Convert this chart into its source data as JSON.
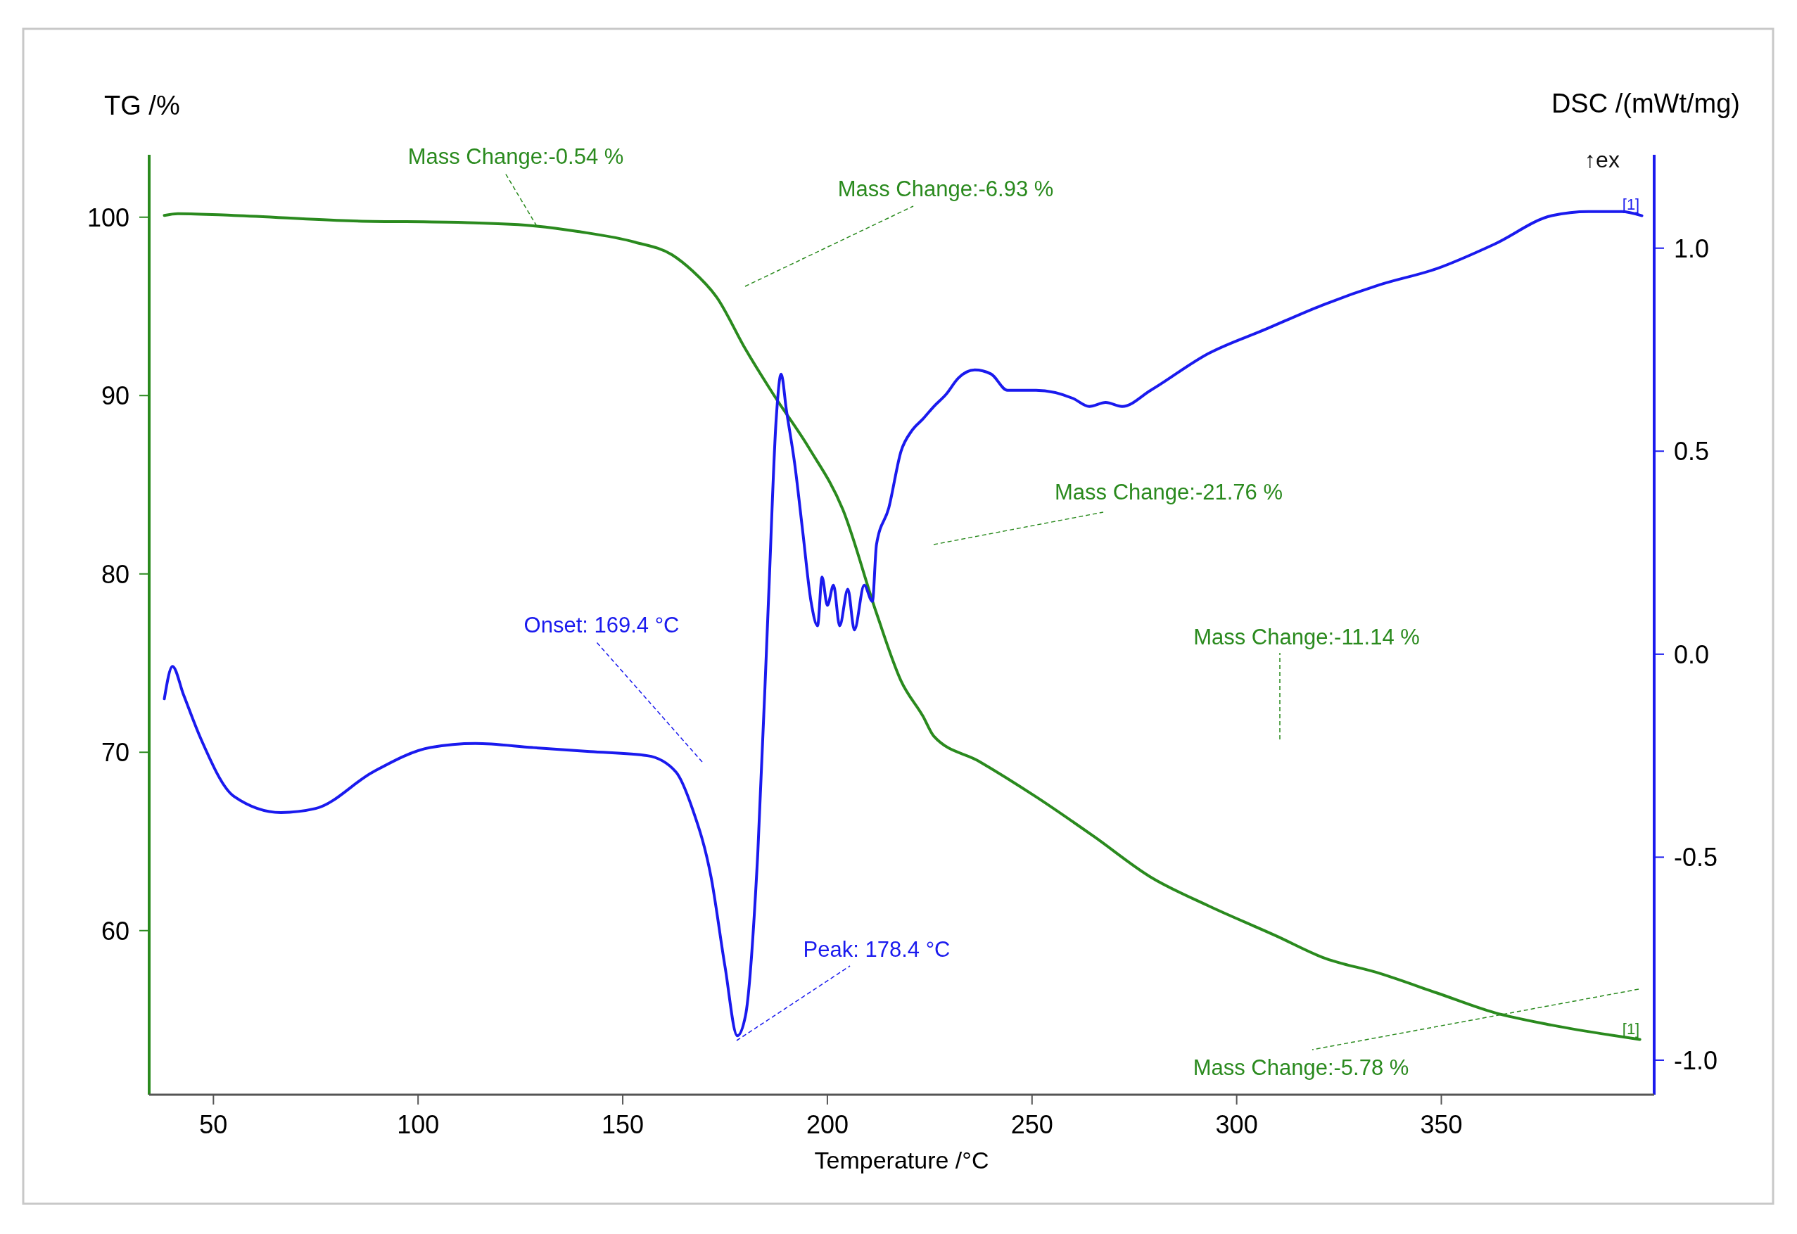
{
  "chart_data": {
    "type": "line",
    "xlabel": "Temperature /°C",
    "ylabel": "TG /%",
    "y2label": "DSC /(mWt/mg)",
    "xlim": [
      34.3,
      402
    ],
    "xticks": [
      50,
      100,
      150,
      200,
      250,
      300,
      350
    ],
    "ylim": [
      50.8,
      103.5
    ],
    "yticks": [
      60,
      70,
      80,
      90,
      100
    ],
    "y2lim": [
      -1.085,
      1.23
    ],
    "y2ticks": [
      {
        "value": -1,
        "label": "-1.0"
      },
      {
        "value": -0.5,
        "label": "-0.5"
      },
      {
        "value": 0,
        "label": "0.0"
      },
      {
        "value": 0.5,
        "label": "0.5"
      },
      {
        "value": 1,
        "label": "1.0"
      }
    ],
    "grid": false,
    "series": [
      {
        "color": "#2a8a1e",
        "x": [
          38,
          41.3,
          55,
          83,
          111,
          129,
          139,
          153,
          162,
          167,
          173,
          180,
          187,
          195.4,
          203.8,
          212,
          218,
          223.4,
          226,
          237,
          251,
          265,
          279,
          293,
          309.7,
          321,
          335,
          349,
          363,
          377,
          398.5
        ],
        "values": [
          100.1,
          100.2,
          100.1,
          99.8,
          99.7,
          99.5,
          99.2,
          98.6,
          97.9,
          97.0,
          95.5,
          92.6,
          90.0,
          87.1,
          83.6,
          77.8,
          74.0,
          72.0,
          70.9,
          69.5,
          67.5,
          65.3,
          63.0,
          61.4,
          59.7,
          58.5,
          57.6,
          56.5,
          55.4,
          54.7,
          53.9
        ]
      },
      {
        "color": "#1a1aee",
        "axis": "y2",
        "x": [
          38,
          40,
          42.7,
          47,
          55,
          66.5,
          75,
          89,
          103,
          114,
          128,
          142,
          156,
          163,
          167,
          171.6,
          175,
          178,
          180,
          183,
          185.6,
          187.5,
          188.7,
          190,
          192,
          194,
          196,
          197.6,
          198.7,
          200,
          201.5,
          203,
          205,
          206.6,
          209,
          211,
          212,
          215,
          218,
          220.6,
          223.4,
          226,
          229,
          232,
          236,
          240,
          244,
          251,
          260,
          264,
          268,
          272,
          279,
          293,
          307,
          321,
          335,
          349,
          363,
          377,
          386,
          394,
          399
        ],
        "values": [
          -0.11,
          -0.03,
          -0.1,
          -0.21,
          -0.35,
          -0.39,
          -0.38,
          -0.29,
          -0.23,
          -0.22,
          -0.23,
          -0.24,
          -0.25,
          -0.29,
          -0.38,
          -0.55,
          -0.77,
          -0.94,
          -0.89,
          -0.49,
          0.13,
          0.58,
          0.69,
          0.6,
          0.47,
          0.3,
          0.13,
          0.07,
          0.19,
          0.12,
          0.17,
          0.07,
          0.16,
          0.06,
          0.17,
          0.13,
          0.27,
          0.36,
          0.5,
          0.55,
          0.58,
          0.61,
          0.64,
          0.68,
          0.7,
          0.69,
          0.65,
          0.65,
          0.63,
          0.61,
          0.62,
          0.61,
          0.65,
          0.74,
          0.8,
          0.86,
          0.91,
          0.95,
          1.01,
          1.08,
          1.09,
          1.09,
          1.08
        ]
      }
    ],
    "annotations": [
      {
        "text": "Mass Change:-0.54 %",
        "x": 129,
        "y": 99.5
      },
      "Mass Change:-6.93 %",
      "Mass Change:-21.76 %",
      "Mass Change:-11.14 %",
      "Mass Change:-5.78 %",
      "Onset: 169.4 °C",
      "Peak: 178.4 °C",
      "[1]",
      "[1]",
      "↑ex"
    ]
  }
}
